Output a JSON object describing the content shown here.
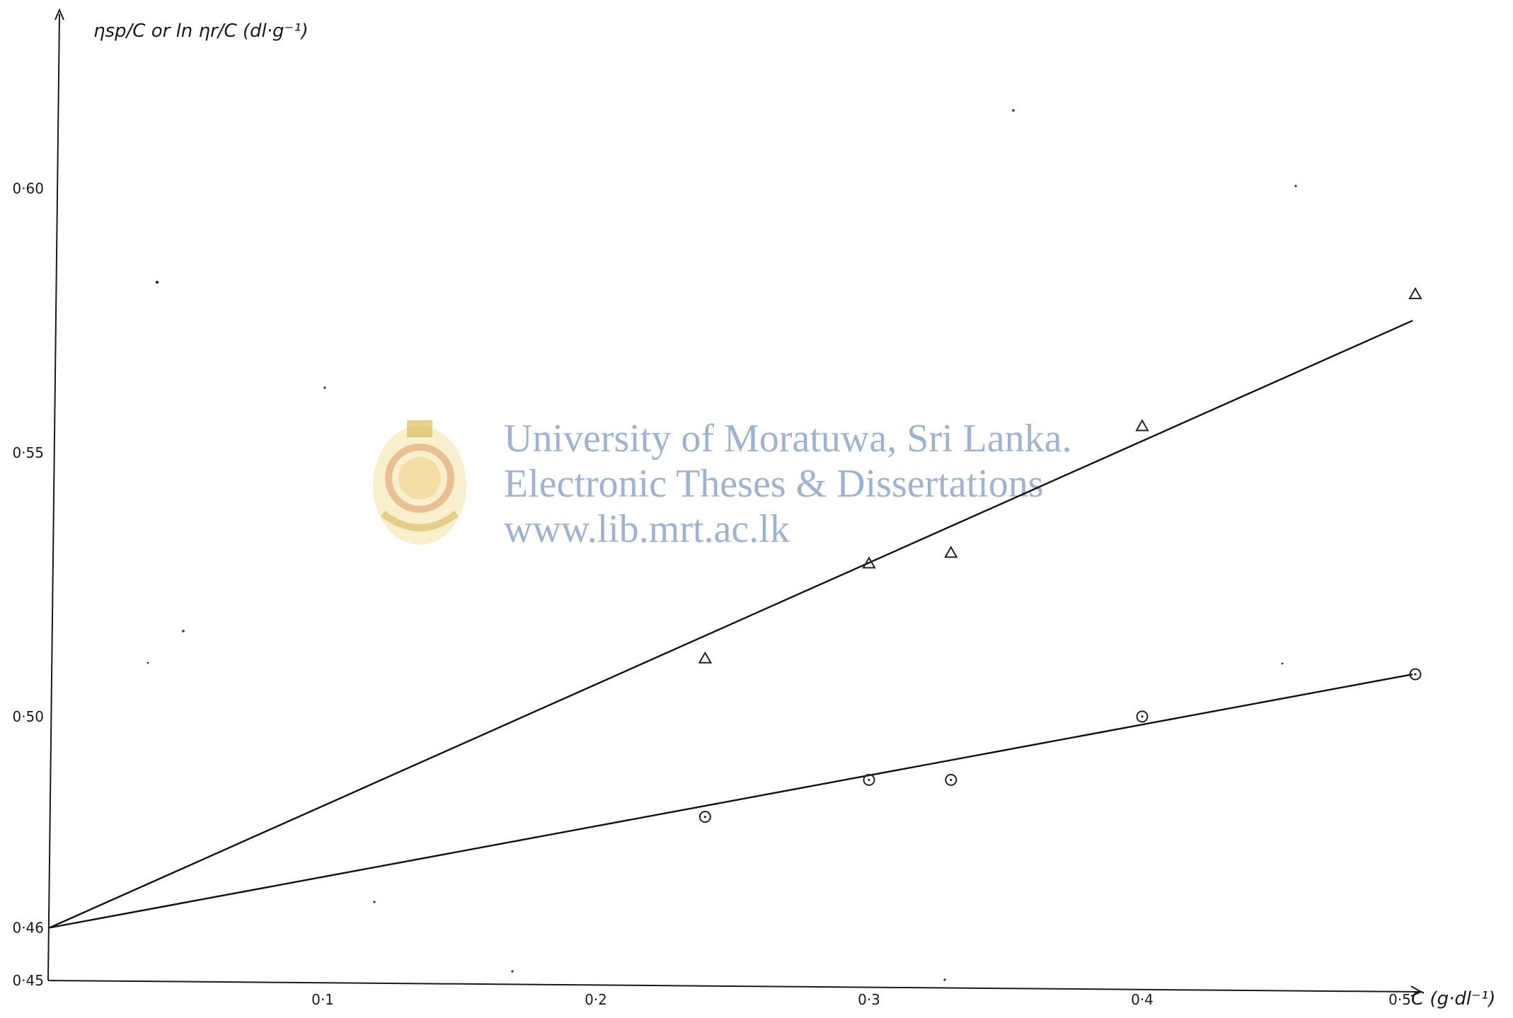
{
  "chart_data": {
    "type": "scatter",
    "title": "",
    "ylabel": "ηsp/C or ln ηr/C (dl·g⁻¹)",
    "xlabel": "C (g·dl⁻¹)",
    "xlim": [
      0,
      0.5
    ],
    "ylim": [
      0.45,
      0.61
    ],
    "x_ticks": [
      0.1,
      0.2,
      0.3,
      0.4,
      0.5
    ],
    "x_tick_labels": [
      "0·1",
      "0·2",
      "0·3",
      "0·4",
      "0·5"
    ],
    "y_ticks": [
      0.45,
      0.46,
      0.5,
      0.55,
      0.6
    ],
    "y_tick_labels": [
      "0·45",
      "0·46",
      "0·50",
      "0·55",
      "0·60"
    ],
    "grid": false,
    "legend": "none",
    "series": [
      {
        "marker": "triangle",
        "points": [
          {
            "x": 0.24,
            "y": 0.511
          },
          {
            "x": 0.3,
            "y": 0.529
          },
          {
            "x": 0.33,
            "y": 0.531
          },
          {
            "x": 0.4,
            "y": 0.555
          },
          {
            "x": 0.5,
            "y": 0.58
          }
        ],
        "fit_line": {
          "x": [
            0,
            0.499
          ],
          "y": [
            0.46,
            0.575
          ]
        }
      },
      {
        "marker": "circle",
        "points": [
          {
            "x": 0.24,
            "y": 0.481
          },
          {
            "x": 0.3,
            "y": 0.488
          },
          {
            "x": 0.33,
            "y": 0.488
          },
          {
            "x": 0.4,
            "y": 0.5
          },
          {
            "x": 0.5,
            "y": 0.508
          }
        ],
        "fit_line": {
          "x": [
            0,
            0.499
          ],
          "y": [
            0.46,
            0.508
          ]
        }
      }
    ]
  },
  "watermark": {
    "line1": "University of Moratuwa, Sri Lanka.",
    "line2": "Electronic Theses & Dissertations",
    "line3": "www.lib.mrt.ac.lk",
    "color": "#9db3cf"
  }
}
